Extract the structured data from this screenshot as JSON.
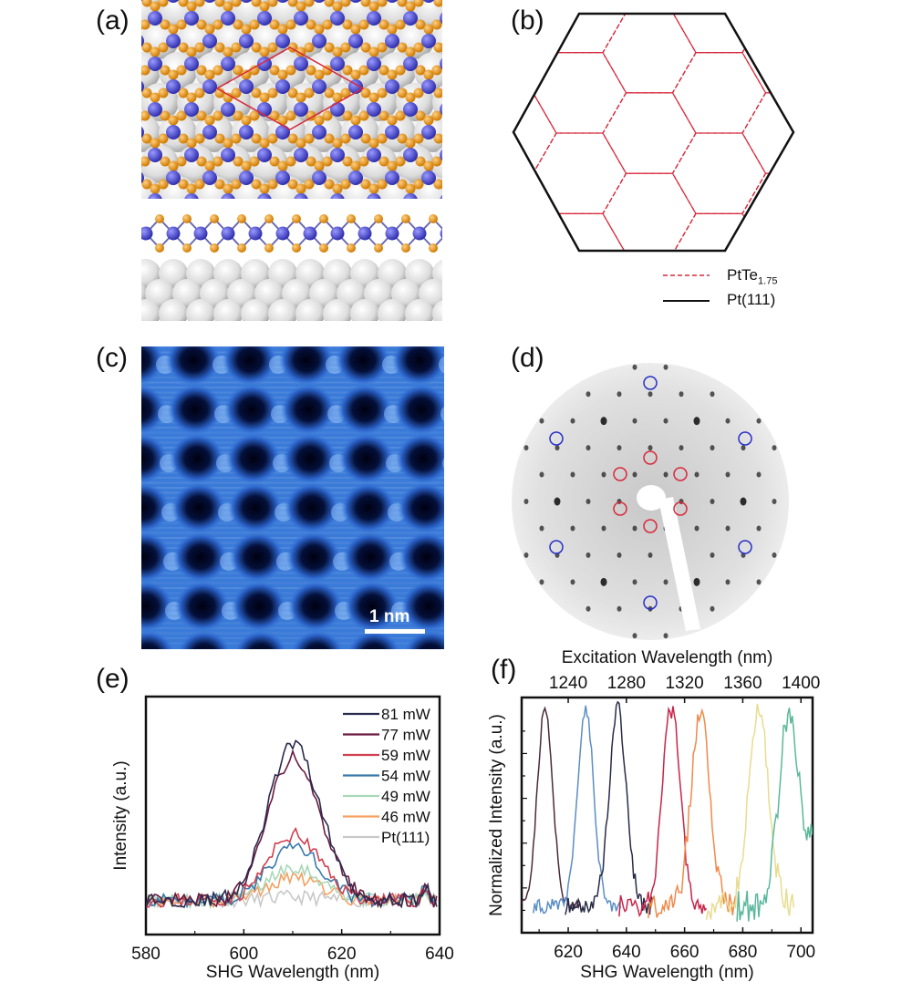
{
  "panels": {
    "a": {
      "label": "(a)"
    },
    "b": {
      "label": "(b)",
      "legend": [
        {
          "name": "PtTe",
          "sub": "1.75",
          "style": "dashed",
          "color": "#d8283c"
        },
        {
          "name": "Pt(111)",
          "sub": "",
          "style": "solid",
          "color": "#111111"
        }
      ]
    },
    "c": {
      "label": "(c)",
      "scale_bar": "1 nm"
    },
    "d": {
      "label": "(d)"
    },
    "e": {
      "label": "(e)"
    },
    "f": {
      "label": "(f)"
    }
  },
  "colors": {
    "te": "#e8901c",
    "pt_layer": "#4a44c8",
    "substrate": "#d8d8d8",
    "stm": "#3a7ad8",
    "red": "#d8283c",
    "blue": "#2830c8"
  },
  "chart_data": [
    {
      "type": "line",
      "panel": "e",
      "xlabel": "SHG Wavelength (nm)",
      "ylabel": "Intensity (a.u.)",
      "xlim": [
        580,
        640
      ],
      "ylim": [
        -0.22,
        1.31
      ],
      "xticks": [
        580,
        600,
        620,
        640
      ],
      "legend_position": "top-right",
      "peak_center_nm": 610,
      "series": [
        {
          "name": "81 mW",
          "color": "#2a2a4e",
          "peak": 1.0
        },
        {
          "name": "77 mW",
          "color": "#6a1a40",
          "peak": 0.92
        },
        {
          "name": "59 mW",
          "color": "#d04050",
          "peak": 0.42
        },
        {
          "name": "54 mW",
          "color": "#3a7aaa",
          "peak": 0.35
        },
        {
          "name": "49 mW",
          "color": "#a8d8b8",
          "peak": 0.22
        },
        {
          "name": "46 mW",
          "color": "#f4a060",
          "peak": 0.15
        },
        {
          "name": "Pt(111)",
          "color": "#c8c8c8",
          "peak": 0.02
        }
      ]
    },
    {
      "type": "line",
      "panel": "f",
      "xlabel": "SHG Wavelength (nm)",
      "x2label": "Excitation Wavelength (nm)",
      "ylabel": "Normalized Intensity (a.u.)",
      "xlim": [
        604,
        704
      ],
      "ylim": [
        0,
        1.05
      ],
      "xticks": [
        620,
        640,
        660,
        680,
        700
      ],
      "x2ticks": [
        1240,
        1280,
        1320,
        1360,
        1400
      ],
      "series": [
        {
          "peak_nm": 612,
          "color": "#4a2a3c"
        },
        {
          "peak_nm": 626,
          "color": "#5a8ec4"
        },
        {
          "peak_nm": 637,
          "color": "#2a2a48"
        },
        {
          "peak_nm": 655.5,
          "color": "#c82448"
        },
        {
          "peak_nm": 665.5,
          "color": "#f08a4a"
        },
        {
          "peak_nm": 685.5,
          "color": "#e8dc90"
        },
        {
          "peak_nm": 696,
          "color": "#5ab89a"
        }
      ]
    }
  ]
}
